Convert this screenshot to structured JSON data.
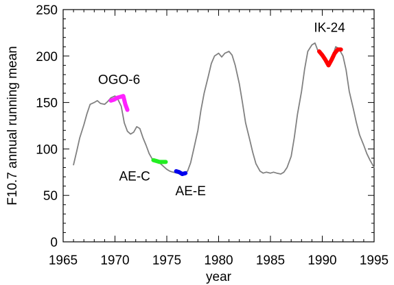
{
  "chart_data": {
    "type": "line",
    "title": "",
    "xlabel": "year",
    "ylabel": "F10.7 annual running mean",
    "xlim": [
      1965,
      1995
    ],
    "ylim": [
      0,
      250
    ],
    "x_ticks": [
      1965,
      1970,
      1975,
      1980,
      1985,
      1990,
      1995
    ],
    "x_tick_labels": [
      "1965",
      "1970",
      "1975",
      "1980",
      "1985",
      "1990",
      "1995"
    ],
    "y_ticks": [
      0,
      50,
      100,
      150,
      200,
      250
    ],
    "y_tick_labels": [
      "0",
      "50",
      "100",
      "150",
      "200",
      "250"
    ],
    "grid": false,
    "series": [
      {
        "color": "#808080",
        "x": [
          1966.0,
          1966.3,
          1966.6,
          1967.0,
          1967.3,
          1967.6,
          1968.0,
          1968.3,
          1968.6,
          1969.0,
          1969.3,
          1969.6,
          1970.0,
          1970.3,
          1970.6,
          1970.9,
          1971.2,
          1971.5,
          1971.8,
          1972.1,
          1972.4,
          1972.7,
          1973.0,
          1973.3,
          1973.6,
          1974.0,
          1974.3,
          1974.6,
          1975.0,
          1975.3,
          1975.6,
          1976.0,
          1976.3,
          1976.6,
          1977.0,
          1977.3,
          1977.6,
          1978.0,
          1978.3,
          1978.6,
          1979.0,
          1979.3,
          1979.6,
          1980.0,
          1980.3,
          1980.6,
          1981.0,
          1981.3,
          1981.6,
          1982.0,
          1982.3,
          1982.6,
          1983.0,
          1983.3,
          1983.6,
          1984.0,
          1984.3,
          1984.6,
          1985.0,
          1985.3,
          1985.6,
          1986.0,
          1986.3,
          1986.6,
          1987.0,
          1987.3,
          1987.6,
          1988.0,
          1988.3,
          1988.6,
          1989.0,
          1989.3,
          1989.6,
          1990.0,
          1990.3,
          1990.6,
          1991.0,
          1991.3,
          1991.6,
          1992.0,
          1992.3,
          1992.6,
          1993.0,
          1993.3,
          1993.6,
          1994.0,
          1994.3,
          1994.6,
          1995.0
        ],
        "y": [
          83,
          97,
          112,
          126,
          138,
          148,
          150,
          152,
          149,
          148,
          151,
          155,
          157,
          153,
          146,
          128,
          119,
          116,
          118,
          124,
          122,
          112,
          104,
          95,
          89,
          87,
          85,
          82,
          78,
          76,
          75,
          74,
          74,
          74,
          76,
          85,
          100,
          120,
          142,
          160,
          178,
          192,
          200,
          203,
          199,
          203,
          205,
          201,
          190,
          170,
          150,
          128,
          110,
          96,
          84,
          76,
          74,
          75,
          74,
          75,
          74,
          73,
          75,
          80,
          92,
          112,
          137,
          162,
          186,
          205,
          212,
          214,
          205,
          200,
          194,
          190,
          200,
          210,
          208,
          200,
          185,
          162,
          143,
          128,
          115,
          104,
          95,
          88,
          80
        ]
      },
      {
        "name": "OGO-6",
        "color": "#ff22ff",
        "x": [
          1969.6,
          1969.9,
          1970.2,
          1970.5,
          1970.8,
          1971.0,
          1971.2
        ],
        "y": [
          152,
          153,
          155,
          156,
          157,
          148,
          142
        ]
      },
      {
        "name": "AE-C",
        "color": "#22ee22",
        "x": [
          1973.7,
          1974.0,
          1974.3,
          1974.6,
          1974.9
        ],
        "y": [
          88,
          87,
          86,
          86,
          86
        ]
      },
      {
        "name": "AE-E",
        "color": "#0000ee",
        "x": [
          1975.9,
          1976.2,
          1976.5,
          1976.8
        ],
        "y": [
          76,
          75,
          73,
          74
        ]
      },
      {
        "name": "IK-24",
        "color": "#ff0000",
        "x": [
          1989.7,
          1990.0,
          1990.3,
          1990.6,
          1990.9,
          1991.2,
          1991.5,
          1991.8
        ],
        "y": [
          205,
          201,
          196,
          190,
          196,
          203,
          207,
          207
        ]
      }
    ],
    "annotations": [
      {
        "text": "OGO-6",
        "x": 1970.4,
        "y": 170
      },
      {
        "text": "AE-C",
        "x": 1971.9,
        "y": 66
      },
      {
        "text": "AE-E",
        "x": 1977.3,
        "y": 50
      },
      {
        "text": "IK-24",
        "x": 1990.7,
        "y": 226
      }
    ]
  }
}
